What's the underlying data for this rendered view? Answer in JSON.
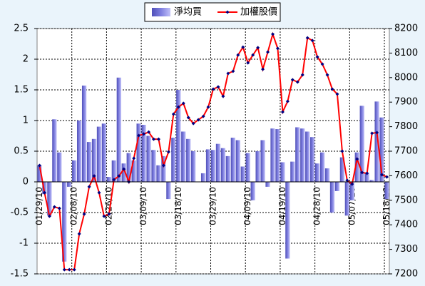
{
  "chart_data": {
    "type": "bar_line",
    "categories": [
      "01/29/10",
      null,
      null,
      null,
      null,
      null,
      null,
      "02/08/10",
      null,
      null,
      null,
      null,
      null,
      null,
      "02/26/10",
      null,
      null,
      null,
      null,
      null,
      null,
      "03/09/10",
      null,
      null,
      null,
      null,
      null,
      null,
      "03/18/10",
      null,
      null,
      null,
      null,
      null,
      null,
      "03/29/10",
      null,
      null,
      null,
      null,
      null,
      null,
      "04/09/10",
      null,
      null,
      null,
      null,
      null,
      null,
      "04/19/10",
      null,
      null,
      null,
      null,
      null,
      null,
      "04/28/10",
      null,
      null,
      null,
      null,
      null,
      null,
      "05/07/10",
      null,
      null,
      null,
      null,
      null,
      null,
      "05/18/10"
    ],
    "series": [
      {
        "name": "淨均買",
        "type": "bar",
        "color": "#8080e0",
        "values": [
          0.27,
          -0.2,
          -0.55,
          1.02,
          0.48,
          -1.3,
          -0.08,
          0.35,
          1.0,
          1.57,
          0.65,
          0.7,
          0.9,
          0.95,
          0.08,
          0.35,
          1.7,
          0.3,
          0.47,
          0.35,
          0.95,
          0.93,
          0.75,
          0.52,
          0.27,
          0.42,
          -0.28,
          0.72,
          1.5,
          0.82,
          0.7,
          0.5,
          0.0,
          0.14,
          0.53,
          0.52,
          0.62,
          0.55,
          0.42,
          0.72,
          0.68,
          0.25,
          0.47,
          -0.3,
          0.5,
          0.68,
          -0.08,
          0.87,
          0.86,
          0.32,
          -1.25,
          0.33,
          0.89,
          0.87,
          0.82,
          0.73,
          0.3,
          0.48,
          0.22,
          -0.5,
          -0.15,
          0.4,
          -0.55,
          -0.3,
          0.48,
          1.24,
          0.15,
          0.03,
          1.31,
          1.05,
          -0.28
        ]
      },
      {
        "name": "加權股價",
        "type": "line",
        "axis": "y2",
        "color": "#ff0000",
        "marker_color": "#000080",
        "values": [
          7642,
          7531,
          7435,
          7473,
          7467,
          7217,
          7217,
          7217,
          7363,
          7444,
          7555,
          7599,
          7531,
          7435,
          7444,
          7584,
          7599,
          7627,
          7575,
          7671,
          7764,
          7770,
          7778,
          7749,
          7749,
          7642,
          7697,
          7851,
          7880,
          7895,
          7837,
          7813,
          7828,
          7842,
          7880,
          7953,
          7962,
          7924,
          8017,
          8026,
          8092,
          8124,
          8060,
          8092,
          8122,
          8034,
          8104,
          8177,
          8119,
          7860,
          7903,
          7991,
          7982,
          8011,
          8162,
          8151,
          8084,
          8055,
          8011,
          7953,
          7933,
          7700,
          7581,
          7566,
          7668,
          7613,
          7610,
          7773,
          7776,
          7604,
          7595
        ]
      }
    ],
    "ylim": [
      -1.5,
      2.5
    ],
    "yticks": [
      -1.5,
      -1,
      -0.5,
      0,
      0.5,
      1,
      1.5,
      2,
      2.5
    ],
    "y2lim": [
      7200,
      8200
    ],
    "y2ticks": [
      7200,
      7300,
      7400,
      7500,
      7600,
      7700,
      7800,
      7900,
      8000,
      8100,
      8200
    ],
    "grid": true
  }
}
